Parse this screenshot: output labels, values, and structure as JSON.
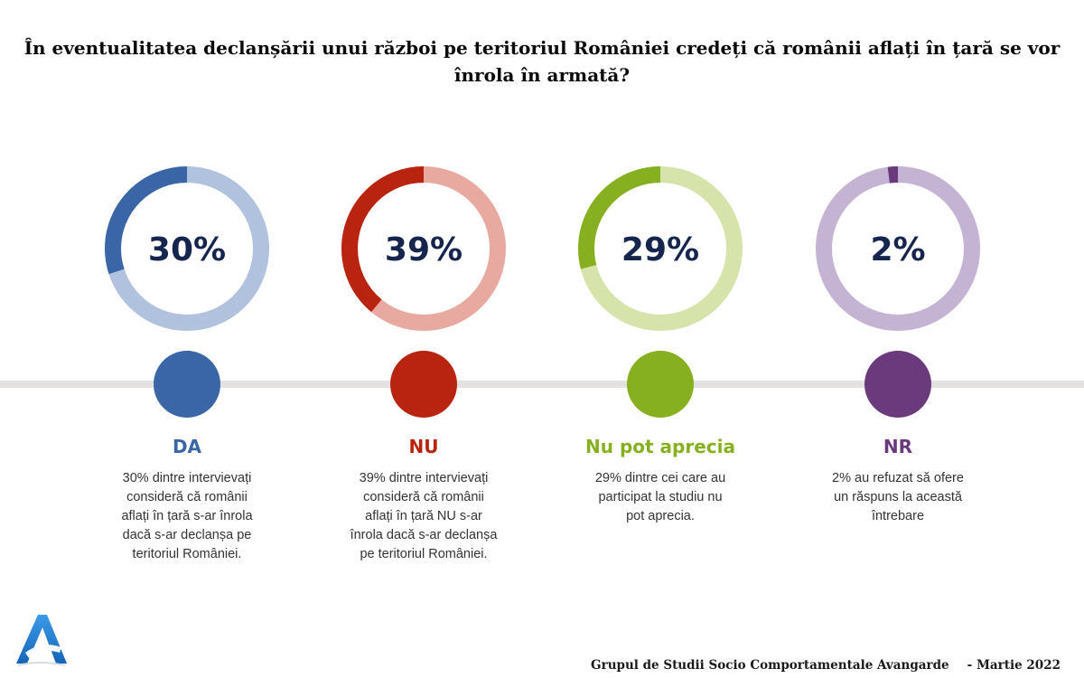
{
  "title_lines": [
    "În eventualitatea declanșării unui război pe teritoriul României credeți că românii aflați în țară se vor",
    "înrola în armată?"
  ],
  "chart_data": {
    "type": "pie",
    "title": "În eventualitatea declanșării unui război pe teritoriul României credeți că românii aflați în țară se vor înrola în armată?",
    "unit": "%",
    "series": [
      {
        "label": "DA",
        "value": 30,
        "value_text": "30%",
        "color": "#3a66a8",
        "ring_bg": "#b0c2dd",
        "description": [
          "30% dintre intervievați",
          "consideră că românii",
          "aflați în țară s-ar înrola",
          "dacă s-ar declanșa pe",
          "teritoriul României."
        ]
      },
      {
        "label": "NU",
        "value": 39,
        "value_text": "39%",
        "color": "#b82410",
        "ring_bg": "#e8aaa0",
        "description": [
          "39% dintre intervievați",
          "consideră că românii",
          "aflați în țară NU s-ar",
          "înrola dacă s-ar declanșa",
          "pe teritoriul României."
        ]
      },
      {
        "label": "Nu pot aprecia",
        "value": 29,
        "value_text": "29%",
        "color": "#86b020",
        "ring_bg": "#d6e3aa",
        "description": [
          "29% dintre cei care au",
          "participat la studiu nu",
          "pot aprecia."
        ]
      },
      {
        "label": "NR",
        "value": 2,
        "value_text": "2%",
        "color": "#6a3a7c",
        "ring_bg": "#c4b3d3",
        "description": [
          "2% au refuzat să ofere",
          "un răspuns la această",
          "întrebare"
        ]
      }
    ]
  },
  "footer": {
    "organization": "Grupul de Studii Socio Comportamentale Avangarde",
    "date": "- Martie 2022"
  },
  "logo": {
    "icon": "avangarde-a-logo-icon",
    "color": "#1f78d1"
  },
  "colors": {
    "value_text": "#16254d",
    "timeline": "#e4e2e0"
  }
}
